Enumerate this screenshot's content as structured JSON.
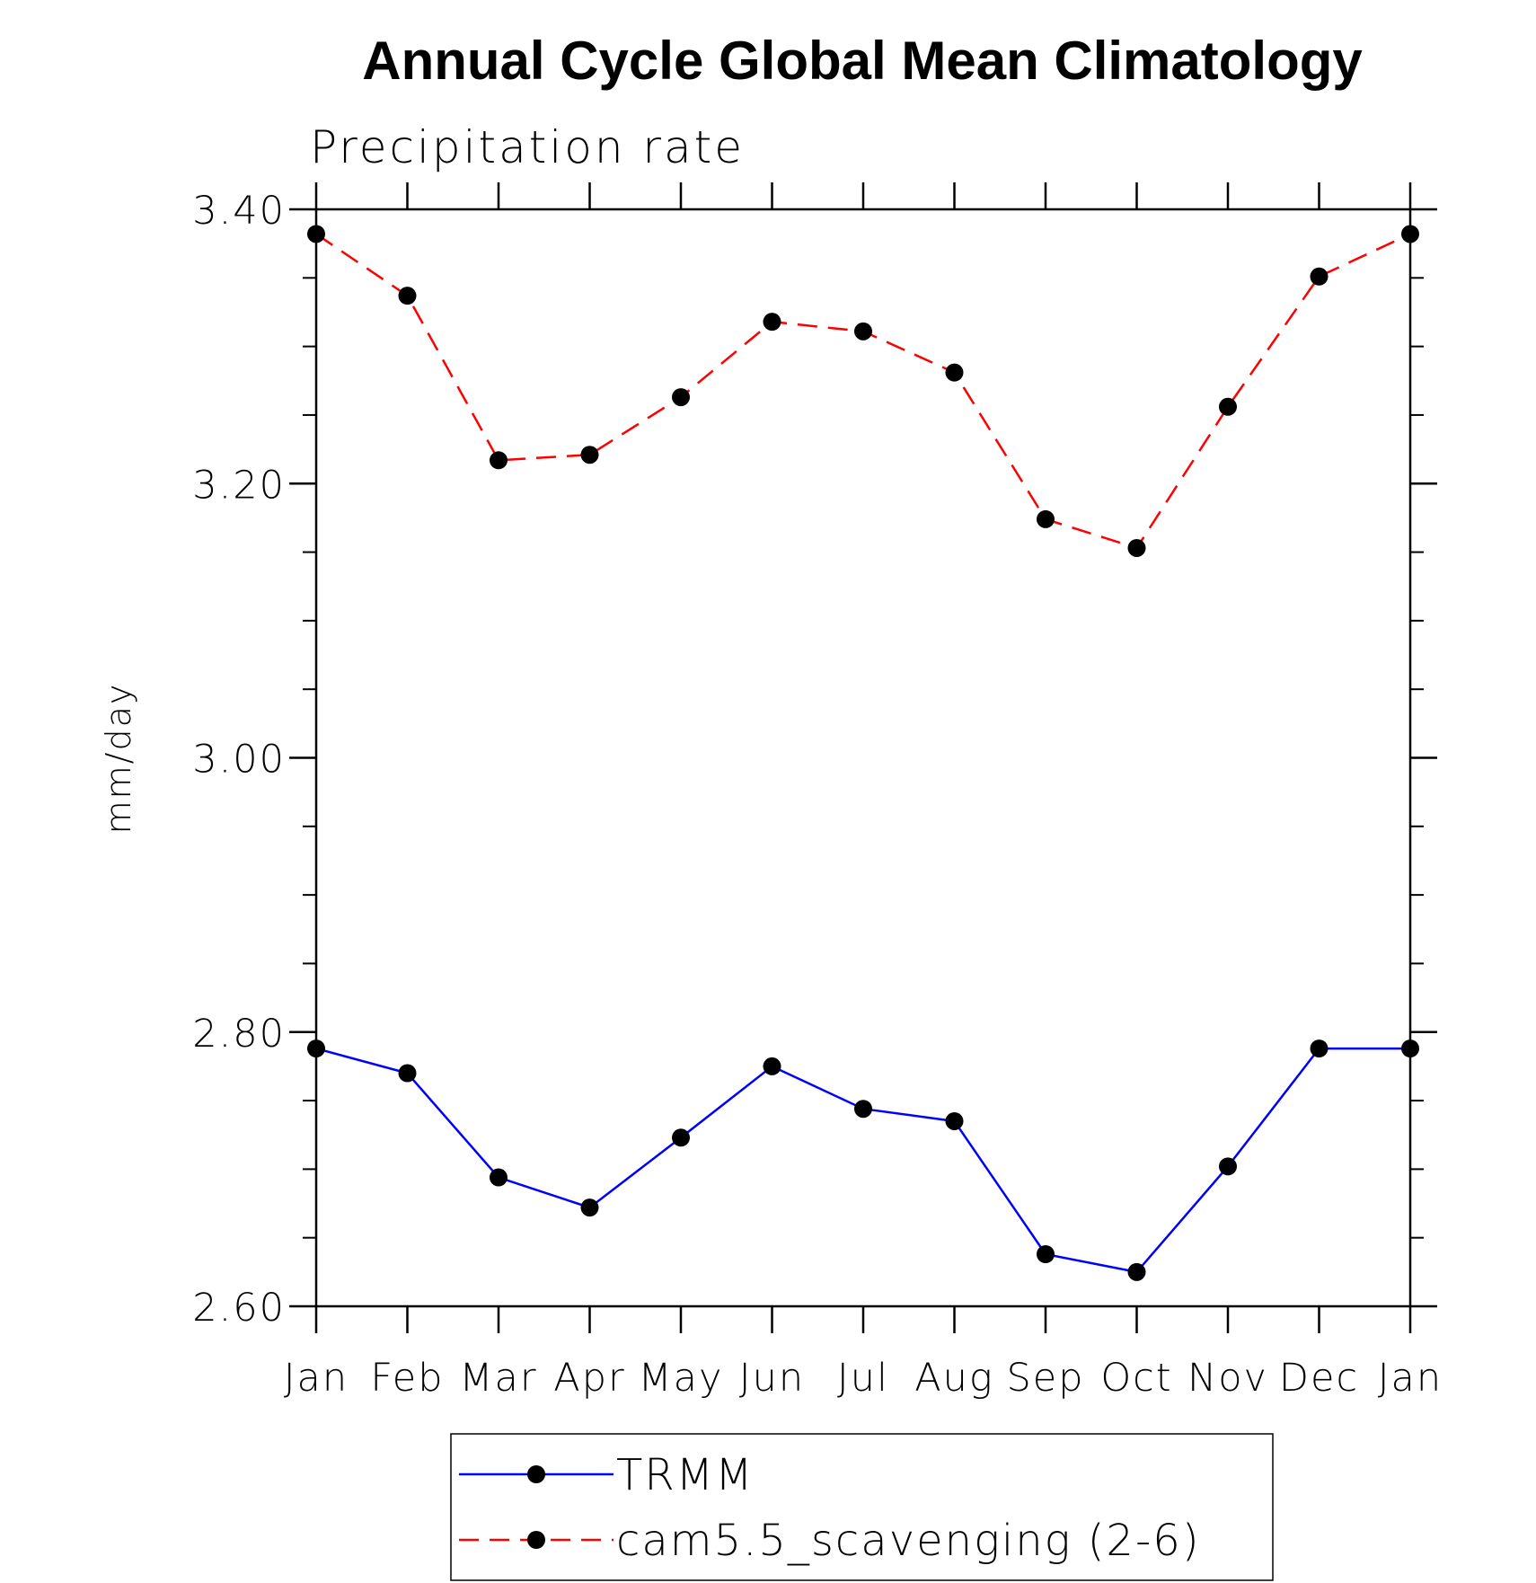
{
  "chart_data": {
    "type": "line",
    "title": "Annual Cycle Global Mean Climatology",
    "subtitle": "Precipitation rate",
    "ylabel": "mm/day",
    "xlabel": "",
    "categories": [
      "Jan",
      "Feb",
      "Mar",
      "Apr",
      "May",
      "Jun",
      "Jul",
      "Aug",
      "Sep",
      "Oct",
      "Nov",
      "Dec",
      "Jan"
    ],
    "ylim": [
      2.6,
      3.4
    ],
    "yticks": [
      "2.60",
      "2.80",
      "3.00",
      "3.20",
      "3.40"
    ],
    "grid": false,
    "legend_position": "bottom-center",
    "series": [
      {
        "name": "TRMM",
        "color": "#0000ff",
        "line_style": "solid",
        "marker": "filled-circle",
        "values": [
          2.788,
          2.77,
          2.694,
          2.672,
          2.723,
          2.775,
          2.744,
          2.735,
          2.638,
          2.625,
          2.702,
          2.788,
          2.788
        ]
      },
      {
        "name": "cam5.5_scavenging (2-6)",
        "color": "#ff0000",
        "line_style": "dashed",
        "marker": "filled-circle",
        "values": [
          3.382,
          3.337,
          3.217,
          3.221,
          3.263,
          3.318,
          3.311,
          3.281,
          3.174,
          3.153,
          3.256,
          3.351,
          3.382
        ]
      }
    ]
  }
}
